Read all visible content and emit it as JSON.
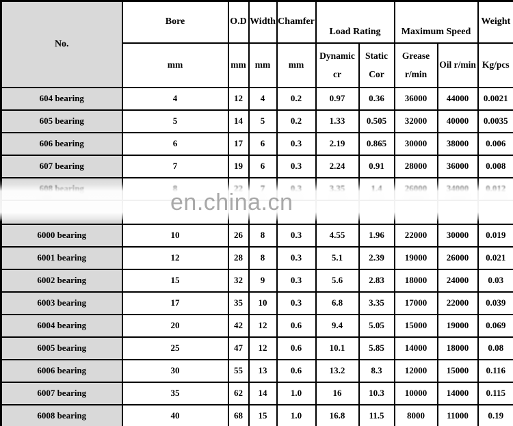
{
  "colors": {
    "label_column_bg": "#d9d9d9",
    "cell_bg": "#ffffff",
    "border": "#000000",
    "watermark": "#9a9a9a"
  },
  "watermark": {
    "text": "en.china.cn"
  },
  "table": {
    "header": {
      "no": "No.",
      "bore": {
        "label": "Bore",
        "unit": "mm"
      },
      "od": {
        "label": "O.D",
        "unit": "mm"
      },
      "width": {
        "label": "Width",
        "unit": "mm"
      },
      "chamfer": {
        "label": "Chamfer",
        "unit": "mm"
      },
      "load_rating": {
        "label": "Load Rating",
        "dynamic_line1": "Dynamic",
        "dynamic_line2": "cr",
        "static_line1": "Static",
        "static_line2": "Cor"
      },
      "max_speed": {
        "label": "Maximum Speed",
        "grease_line1": "Grease",
        "grease_line2": "r/min",
        "oil": "Oil r/min"
      },
      "weight": {
        "label": "Weight",
        "unit": "Kg/pcs"
      }
    },
    "rows": [
      {
        "no": "604 bearing",
        "bore": "4",
        "od": "12",
        "width": "4",
        "chamfer": "0.2",
        "dynamic_cr": "0.97",
        "static_cor": "0.36",
        "grease": "36000",
        "oil": "44000",
        "weight": "0.0021"
      },
      {
        "no": "605 bearing",
        "bore": "5",
        "od": "14",
        "width": "5",
        "chamfer": "0.2",
        "dynamic_cr": "1.33",
        "static_cor": "0.505",
        "grease": "32000",
        "oil": "40000",
        "weight": "0.0035"
      },
      {
        "no": "606 bearing",
        "bore": "6",
        "od": "17",
        "width": "6",
        "chamfer": "0.3",
        "dynamic_cr": "2.19",
        "static_cor": "0.865",
        "grease": "30000",
        "oil": "38000",
        "weight": "0.006"
      },
      {
        "no": "607 bearing",
        "bore": "7",
        "od": "19",
        "width": "6",
        "chamfer": "0.3",
        "dynamic_cr": "2.24",
        "static_cor": "0.91",
        "grease": "28000",
        "oil": "36000",
        "weight": "0.008"
      },
      {
        "no": "608 bearing",
        "bore": "8",
        "od": "22",
        "width": "7",
        "chamfer": "0.3",
        "dynamic_cr": "3.35",
        "static_cor": "1.4",
        "grease": "26000",
        "oil": "34000",
        "weight": "0.012",
        "obscured": true
      },
      {
        "no": "6000 bearing",
        "bore": "10",
        "od": "26",
        "width": "8",
        "chamfer": "0.3",
        "dynamic_cr": "4.55",
        "static_cor": "1.96",
        "grease": "22000",
        "oil": "30000",
        "weight": "0.019"
      },
      {
        "no": "6001 bearing",
        "bore": "12",
        "od": "28",
        "width": "8",
        "chamfer": "0.3",
        "dynamic_cr": "5.1",
        "static_cor": "2.39",
        "grease": "19000",
        "oil": "26000",
        "weight": "0.021"
      },
      {
        "no": "6002 bearing",
        "bore": "15",
        "od": "32",
        "width": "9",
        "chamfer": "0.3",
        "dynamic_cr": "5.6",
        "static_cor": "2.83",
        "grease": "18000",
        "oil": "24000",
        "weight": "0.03"
      },
      {
        "no": "6003 bearing",
        "bore": "17",
        "od": "35",
        "width": "10",
        "chamfer": "0.3",
        "dynamic_cr": "6.8",
        "static_cor": "3.35",
        "grease": "17000",
        "oil": "22000",
        "weight": "0.039"
      },
      {
        "no": "6004 bearing",
        "bore": "20",
        "od": "42",
        "width": "12",
        "chamfer": "0.6",
        "dynamic_cr": "9.4",
        "static_cor": "5.05",
        "grease": "15000",
        "oil": "19000",
        "weight": "0.069"
      },
      {
        "no": "6005 bearing",
        "bore": "25",
        "od": "47",
        "width": "12",
        "chamfer": "0.6",
        "dynamic_cr": "10.1",
        "static_cor": "5.85",
        "grease": "14000",
        "oil": "18000",
        "weight": "0.08"
      },
      {
        "no": "6006 bearing",
        "bore": "30",
        "od": "55",
        "width": "13",
        "chamfer": "0.6",
        "dynamic_cr": "13.2",
        "static_cor": "8.3",
        "grease": "12000",
        "oil": "15000",
        "weight": "0.116"
      },
      {
        "no": "6007 bearing",
        "bore": "35",
        "od": "62",
        "width": "14",
        "chamfer": "1.0",
        "dynamic_cr": "16",
        "static_cor": "10.3",
        "grease": "10000",
        "oil": "14000",
        "weight": "0.115"
      },
      {
        "no": "6008 bearing",
        "bore": "40",
        "od": "68",
        "width": "15",
        "chamfer": "1.0",
        "dynamic_cr": "16.8",
        "static_cor": "11.5",
        "grease": "8000",
        "oil": "11000",
        "weight": "0.19"
      }
    ]
  }
}
